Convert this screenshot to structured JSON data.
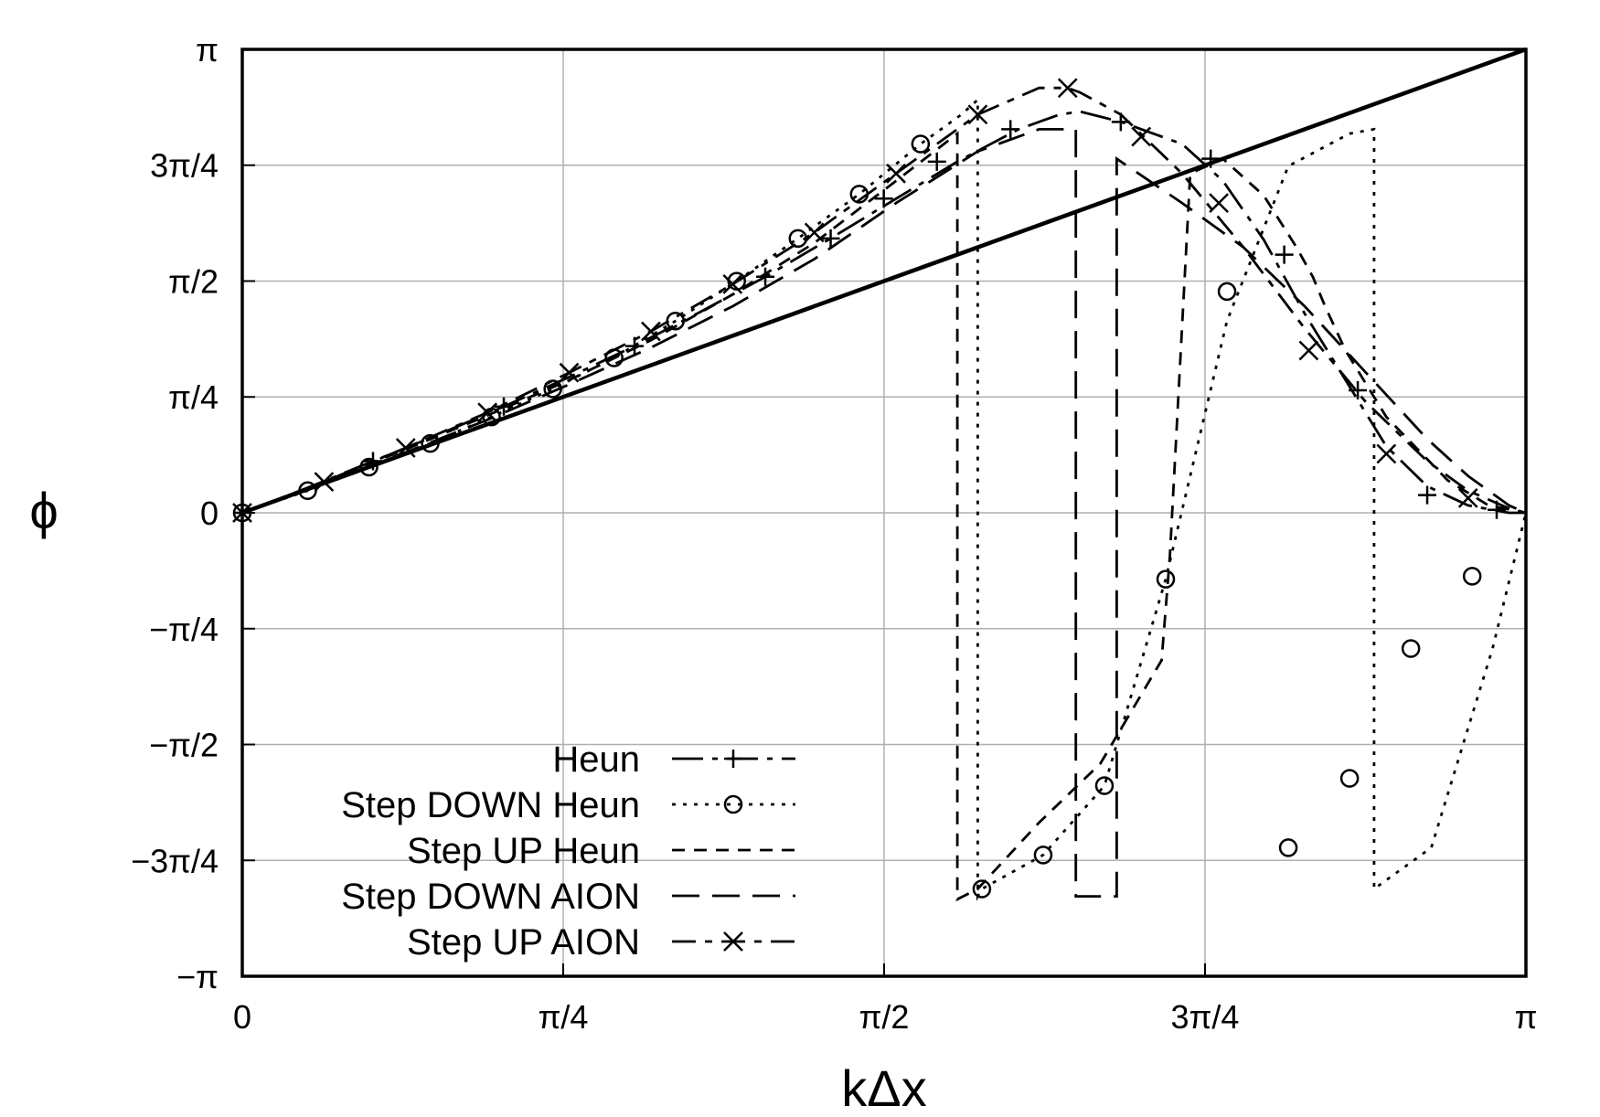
{
  "chart_data": {
    "type": "line",
    "xlabel": "kΔx",
    "ylabel": "ϕ",
    "xlim": [
      0,
      3.14159
    ],
    "ylim": [
      -3.14159,
      3.14159
    ],
    "grid": true,
    "legend_position": "bottom-left",
    "x_ticks": [
      {
        "value": 0,
        "label": "0"
      },
      {
        "value": 0.7854,
        "label": "π/4"
      },
      {
        "value": 1.5708,
        "label": "π/2"
      },
      {
        "value": 2.3562,
        "label": "3π/4"
      },
      {
        "value": 3.14159,
        "label": "π"
      }
    ],
    "y_ticks": [
      {
        "value": 3.14159,
        "label": "π"
      },
      {
        "value": 2.3562,
        "label": "3π/4"
      },
      {
        "value": 1.5708,
        "label": "π/2"
      },
      {
        "value": 0.7854,
        "label": "π/4"
      },
      {
        "value": 0,
        "label": "0"
      },
      {
        "value": -0.7854,
        "label": "−π/4"
      },
      {
        "value": -1.5708,
        "label": "−π/2"
      },
      {
        "value": -2.3562,
        "label": "−3π/4"
      },
      {
        "value": -3.14159,
        "label": "−π"
      }
    ],
    "exact": {
      "x": [
        0,
        3.14159
      ],
      "y": [
        0,
        3.14159
      ]
    },
    "series": [
      {
        "name": "Heun",
        "dash": "34,10,6,10",
        "marker": "plus",
        "x": [
          0,
          0.16,
          0.32,
          0.48,
          0.64,
          0.8,
          0.96,
          1.12,
          1.28,
          1.44,
          1.6,
          1.75,
          1.9,
          2.0,
          2.05,
          2.15,
          2.3,
          2.4,
          2.5,
          2.6,
          2.7,
          2.8,
          2.9,
          3.0,
          3.1,
          3.14159
        ],
        "y": [
          0,
          0.17,
          0.35,
          0.53,
          0.72,
          0.92,
          1.13,
          1.36,
          1.6,
          1.86,
          2.13,
          2.38,
          2.6,
          2.7,
          2.72,
          2.65,
          2.5,
          2.25,
          1.85,
          1.35,
          0.9,
          0.45,
          0.18,
          0.05,
          0.0,
          0.0
        ],
        "marker_x": [
          0,
          0.32,
          0.64,
          0.96,
          1.28,
          1.44,
          1.57,
          1.7,
          1.88,
          2.15,
          2.37,
          2.55,
          2.73,
          2.9,
          3.07
        ],
        "marker_y": [
          0,
          0.35,
          0.72,
          1.13,
          1.6,
          1.86,
          2.13,
          2.38,
          2.6,
          2.65,
          2.4,
          1.75,
          0.83,
          0.12,
          0.02
        ]
      },
      {
        "name": "Step DOWN Heun",
        "dash": "4,8",
        "marker": "circle",
        "x": [
          0,
          0.16,
          0.31,
          0.46,
          0.61,
          0.76,
          0.91,
          1.06,
          1.21,
          1.36,
          1.51,
          1.66,
          1.76,
          1.8,
          1.8,
          1.81,
          1.96,
          2.11,
          2.26,
          2.41,
          2.56,
          2.71,
          2.77,
          2.77,
          2.91,
          3.06,
          3.14159
        ],
        "y": [
          0,
          0.15,
          0.31,
          0.47,
          0.65,
          0.84,
          1.05,
          1.3,
          1.57,
          1.86,
          2.16,
          2.5,
          2.7,
          2.8,
          -2.6,
          -2.55,
          -2.32,
          -1.85,
          -0.45,
          1.3,
          2.35,
          2.57,
          2.6,
          -2.55,
          -2.27,
          -0.92,
          0.0
        ],
        "marker_x": [
          0,
          0.16,
          0.31,
          0.46,
          0.61,
          0.76,
          0.91,
          1.06,
          1.21,
          1.36,
          1.51,
          1.66,
          1.81,
          1.96,
          2.11,
          2.26,
          2.41,
          2.56,
          2.71,
          2.86,
          3.01
        ],
        "marker_y": [
          0,
          0.15,
          0.31,
          0.47,
          0.65,
          0.84,
          1.05,
          1.3,
          1.57,
          1.86,
          2.16,
          2.5,
          -2.55,
          -2.32,
          -1.85,
          -0.45,
          1.5,
          -2.27,
          -1.8,
          -0.92,
          -0.43
        ]
      },
      {
        "name": "Step UP Heun",
        "dash": "14,10",
        "marker": "none",
        "x": [
          0,
          0.2,
          0.4,
          0.6,
          0.8,
          1.0,
          1.2,
          1.4,
          1.6,
          1.75,
          1.75,
          1.8,
          1.95,
          2.1,
          2.25,
          2.27,
          2.32,
          2.4,
          2.5,
          2.58,
          2.62,
          2.65,
          2.7,
          2.8,
          2.95,
          3.05,
          3.14159
        ],
        "y": [
          0,
          0.21,
          0.43,
          0.66,
          0.9,
          1.17,
          1.48,
          1.83,
          2.25,
          2.57,
          -2.62,
          -2.55,
          -2.1,
          -1.7,
          -1.0,
          -0.3,
          2.3,
          2.4,
          2.15,
          1.8,
          1.6,
          1.4,
          1.1,
          0.65,
          0.22,
          0.05,
          0.0
        ]
      },
      {
        "name": "Step DOWN AION",
        "dash": "30,14",
        "marker": "none",
        "x": [
          0,
          0.2,
          0.4,
          0.6,
          0.8,
          1.0,
          1.2,
          1.4,
          1.6,
          1.8,
          1.95,
          2.04,
          2.04,
          2.14,
          2.14,
          2.3,
          2.45,
          2.6,
          2.75,
          2.9,
          3.0,
          3.1,
          3.14159
        ],
        "y": [
          0,
          0.2,
          0.41,
          0.63,
          0.87,
          1.12,
          1.4,
          1.72,
          2.1,
          2.45,
          2.6,
          2.6,
          -2.6,
          -2.6,
          2.4,
          2.1,
          1.8,
          1.4,
          0.95,
          0.5,
          0.25,
          0.05,
          0.0
        ]
      },
      {
        "name": "Step UP AION",
        "dash": "26,10,8,10",
        "marker": "cross",
        "x": [
          0,
          0.2,
          0.4,
          0.6,
          0.8,
          1.0,
          1.2,
          1.4,
          1.6,
          1.8,
          1.95,
          2.02,
          2.05,
          2.15,
          2.3,
          2.45,
          2.6,
          2.75,
          2.9,
          3.0,
          3.1,
          3.14159
        ],
        "y": [
          0,
          0.21,
          0.44,
          0.68,
          0.95,
          1.23,
          1.55,
          1.9,
          2.3,
          2.7,
          2.88,
          2.88,
          2.85,
          2.7,
          2.3,
          1.8,
          1.25,
          0.75,
          0.35,
          0.15,
          0.03,
          0.0
        ],
        "marker_x": [
          0,
          0.2,
          0.4,
          0.6,
          0.8,
          1.0,
          1.2,
          1.4,
          1.6,
          1.8,
          2.02,
          2.2,
          2.39,
          2.61,
          2.8,
          3.0
        ],
        "marker_y": [
          0,
          0.21,
          0.44,
          0.68,
          0.95,
          1.23,
          1.55,
          1.9,
          2.3,
          2.7,
          2.88,
          2.55,
          2.1,
          1.1,
          0.4,
          0.1
        ]
      }
    ]
  }
}
